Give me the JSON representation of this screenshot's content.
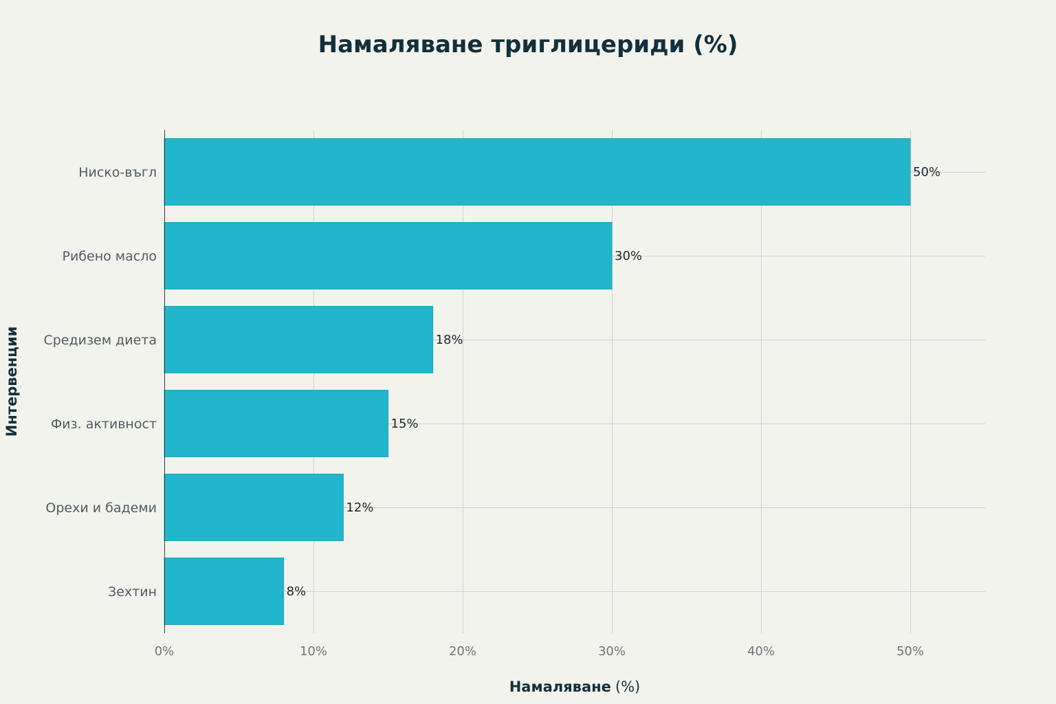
{
  "colors": {
    "bar": "#21b6cb",
    "bar_edge": "#1ca6ba",
    "background": "#f3f3ee",
    "title": "#13303a"
  },
  "chart_data": {
    "type": "bar",
    "orientation": "horizontal",
    "title": "Намаляване триглицериди (%)",
    "xlabel_bold": "Намаляване",
    "xlabel_unit": "(%)",
    "ylabel": "Интервенции",
    "categories": [
      "Ниско-въгл",
      "Рибено масло",
      "Средизем диета",
      "Физ. активност",
      "Орехи и бадеми",
      "Зехтин"
    ],
    "values": [
      50,
      30,
      18,
      15,
      12,
      8
    ],
    "data_labels": [
      "50%",
      "30%",
      "18%",
      "15%",
      "12%",
      "8%"
    ],
    "xlim": [
      0,
      55
    ],
    "xticks": [
      0,
      10,
      20,
      30,
      40,
      50
    ],
    "xtick_labels": [
      "0%",
      "10%",
      "20%",
      "30%",
      "40%",
      "50%"
    ],
    "grid": true,
    "legend": "none"
  }
}
